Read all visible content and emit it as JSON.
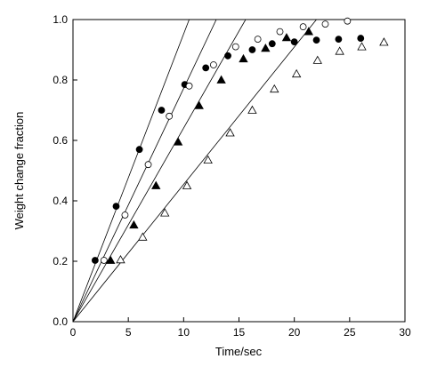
{
  "chart_data": {
    "type": "scatter",
    "x_label": "Time/sec",
    "y_label": "Weight change fraction",
    "xlim": [
      0,
      30
    ],
    "xticks": [
      0,
      5,
      10,
      15,
      20,
      25,
      30
    ],
    "ylim": [
      0,
      1
    ],
    "yticks": [
      {
        "value": 0,
        "label": "0.0"
      },
      0.2,
      0.4,
      0.6,
      0.8,
      {
        "value": 1,
        "label": "1.0"
      }
    ],
    "color": "#000000",
    "series": [
      {
        "marker": "circle",
        "filled": true,
        "x": [
          2.0,
          3.9,
          6.0,
          8.0,
          10.1,
          12.0,
          14.0,
          16.2,
          18.0,
          20.0,
          22.0,
          24.0,
          26.0
        ],
        "values": [
          0.203,
          0.382,
          0.57,
          0.7,
          0.785,
          0.84,
          0.88,
          0.9,
          0.92,
          0.926,
          0.932,
          0.935,
          0.938
        ]
      },
      {
        "marker": "circle",
        "filled": false,
        "x": [
          2.8,
          4.7,
          6.8,
          8.7,
          10.5,
          12.7,
          14.7,
          16.7,
          18.7,
          20.8,
          22.8,
          24.8
        ],
        "values": [
          0.203,
          0.353,
          0.52,
          0.68,
          0.78,
          0.85,
          0.91,
          0.935,
          0.96,
          0.976,
          0.985,
          0.995
        ]
      },
      {
        "marker": "triangle",
        "filled": true,
        "x": [
          3.4,
          5.5,
          7.5,
          9.5,
          11.4,
          13.4,
          15.4,
          17.4,
          19.3,
          21.3
        ],
        "values": [
          0.203,
          0.32,
          0.45,
          0.595,
          0.715,
          0.8,
          0.87,
          0.905,
          0.94,
          0.96
        ]
      },
      {
        "marker": "triangle",
        "filled": false,
        "x": [
          4.3,
          6.3,
          8.3,
          10.3,
          12.2,
          14.2,
          16.2,
          18.2,
          20.2,
          22.1,
          24.1,
          26.1,
          28.1
        ],
        "values": [
          0.205,
          0.28,
          0.36,
          0.45,
          0.535,
          0.625,
          0.7,
          0.77,
          0.82,
          0.865,
          0.895,
          0.91,
          0.925
        ]
      }
    ],
    "fit_lines": [
      {
        "x": [
          0,
          10.5
        ],
        "values": [
          0,
          1
        ]
      },
      {
        "x": [
          0,
          12.95
        ],
        "values": [
          0,
          1
        ]
      },
      {
        "x": [
          0,
          15.6
        ],
        "values": [
          0,
          1
        ]
      },
      {
        "x": [
          0,
          22
        ],
        "values": [
          0,
          1
        ]
      }
    ]
  }
}
